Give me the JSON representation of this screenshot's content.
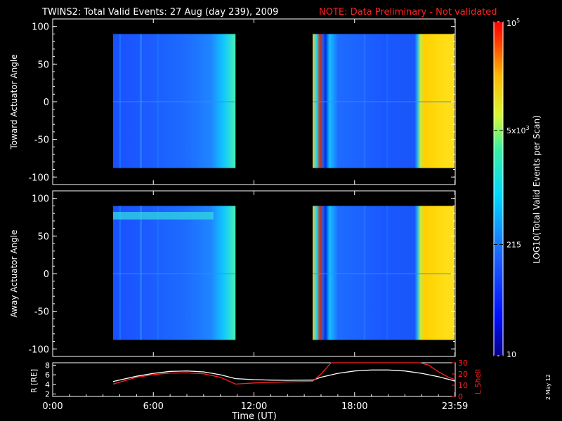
{
  "title": {
    "text": "TWINS2: Total Valid Events: 27 Aug (day 239), 2009",
    "note": "NOTE: Data Preliminary - Not validated",
    "colors": {
      "title": "#ffffff",
      "note": "#ff2020"
    }
  },
  "side_label": "2 May 12",
  "chart_data": [
    {
      "type": "heatmap",
      "panel": "toward",
      "ylabel": "Toward Actuator Angle",
      "yticks": [
        "100",
        "50",
        "0",
        "-50",
        "-100"
      ],
      "ylim": [
        -110,
        110
      ],
      "xlim": [
        0,
        24
      ],
      "data_ylim": [
        -88,
        90
      ],
      "segments": [
        {
          "t_start": 3.6,
          "t_end": 10.9
        },
        {
          "t_start": 15.5,
          "t_end": 23.95
        }
      ]
    },
    {
      "type": "heatmap",
      "panel": "away",
      "ylabel": "Away Actuator Angle",
      "yticks": [
        "100",
        "50",
        "0",
        "-50",
        "-100"
      ],
      "ylim": [
        -110,
        110
      ],
      "xlim": [
        0,
        24
      ],
      "data_ylim": [
        -88,
        90
      ],
      "segments": [
        {
          "t_start": 3.6,
          "t_end": 10.9
        },
        {
          "t_start": 15.5,
          "t_end": 23.95
        }
      ]
    },
    {
      "type": "line",
      "panel": "orbit",
      "xlabel": "Time (UT)",
      "xticks": [
        "0:00",
        "6:00",
        "12:00",
        "18:00",
        "23:59"
      ],
      "xlim": [
        0,
        24
      ],
      "ylabel_left": "R [RE]",
      "yticks_left": [
        "8",
        "6",
        "4",
        "2"
      ],
      "ylim_left": [
        1.5,
        8.5
      ],
      "ylabel_right": "L Shell",
      "yticks_right": [
        "30",
        "20",
        "10",
        "0"
      ],
      "ylim_right": [
        0,
        30
      ],
      "series": [
        {
          "axis": "left",
          "color": "#ffffff",
          "x": [
            3.6,
            5,
            6,
            7,
            8,
            9,
            10,
            10.9,
            12,
            13,
            14,
            15.5,
            16,
            17,
            18,
            19,
            20,
            21,
            22,
            23,
            24
          ],
          "y": [
            4.6,
            5.7,
            6.3,
            6.7,
            6.8,
            6.6,
            6.0,
            5.2,
            5.0,
            4.9,
            4.85,
            4.9,
            5.5,
            6.3,
            6.8,
            7.0,
            7.0,
            6.8,
            6.3,
            5.6,
            4.7
          ]
        },
        {
          "axis": "right",
          "color": "#ff2020",
          "x": [
            3.6,
            5,
            6,
            7,
            8,
            9,
            10,
            10.9,
            12,
            13,
            14,
            15.5,
            16,
            16.6,
            21.9,
            22.4,
            23.0,
            23.6,
            24
          ],
          "y": [
            11,
            17,
            19.5,
            20.8,
            21,
            20.2,
            17,
            11,
            12,
            12.5,
            13,
            13.5,
            20,
            30,
            30,
            28,
            22,
            17,
            15
          ]
        }
      ]
    }
  ],
  "colorbar": {
    "label": "LOG10(Total Valid Events per Scan)",
    "ticks": [
      {
        "mant": "10",
        "exp": "5",
        "value": 100000
      },
      {
        "mant": "5x10",
        "exp": "3",
        "value": 5000
      },
      {
        "mant": "215",
        "exp": "",
        "value": 215
      },
      {
        "mant": "10",
        "exp": "",
        "value": 10
      }
    ],
    "range": [
      10,
      100000
    ]
  }
}
